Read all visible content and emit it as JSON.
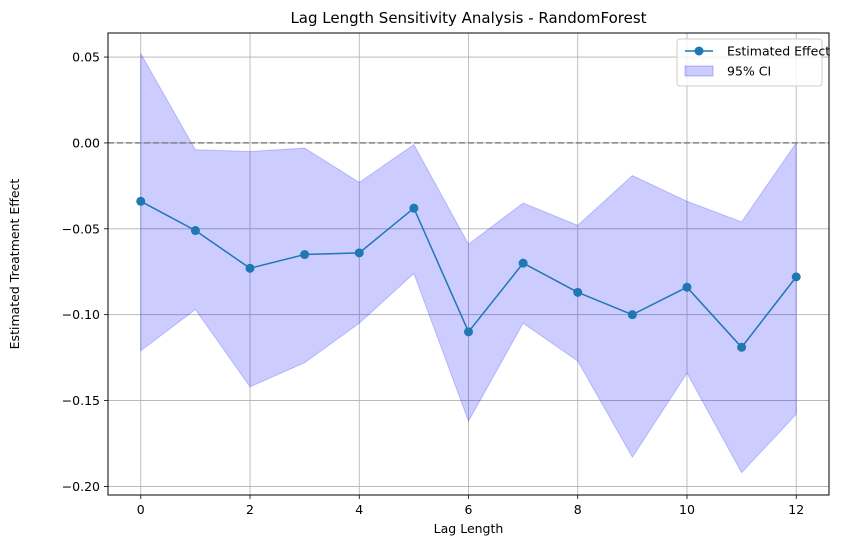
{
  "chart_data": {
    "type": "line",
    "title": "Lag Length Sensitivity Analysis - RandomForest",
    "xlabel": "Lag Length",
    "ylabel": "Estimated Treatment Effect",
    "x": [
      0,
      1,
      2,
      3,
      4,
      5,
      6,
      7,
      8,
      9,
      10,
      11,
      12
    ],
    "series": [
      {
        "name": "Estimated Effect",
        "values": [
          -0.034,
          -0.051,
          -0.073,
          -0.065,
          -0.064,
          -0.038,
          -0.11,
          -0.07,
          -0.087,
          -0.1,
          -0.084,
          -0.119,
          -0.078
        ],
        "color": "#1f77b4"
      }
    ],
    "confidence_band": {
      "name": "95% CI",
      "lower": [
        -0.121,
        -0.097,
        -0.142,
        -0.128,
        -0.105,
        -0.076,
        -0.162,
        -0.105,
        -0.127,
        -0.183,
        -0.134,
        -0.192,
        -0.158
      ],
      "upper": [
        0.052,
        -0.004,
        -0.005,
        -0.003,
        -0.023,
        -0.001,
        -0.059,
        -0.035,
        -0.048,
        -0.019,
        -0.034,
        -0.046,
        0.0
      ],
      "color": "#0000ff",
      "opacity": 0.2
    },
    "reference_line": {
      "y": 0.0,
      "style": "dashed",
      "color": "#808080"
    },
    "xlim": [
      -0.6,
      12.6
    ],
    "ylim": [
      -0.205,
      0.064
    ],
    "xticks": [
      0,
      2,
      4,
      6,
      8,
      10,
      12
    ],
    "xtick_labels": [
      "0",
      "2",
      "4",
      "6",
      "8",
      "10",
      "12"
    ],
    "yticks": [
      0.05,
      0.0,
      -0.05,
      -0.1,
      -0.15,
      -0.2
    ],
    "ytick_labels": [
      "0.05",
      "0.00",
      "−0.05",
      "−0.10",
      "−0.15",
      "−0.20"
    ],
    "grid": true,
    "legend": {
      "position": "upper right",
      "entries": [
        "Estimated Effect",
        "95% CI"
      ]
    }
  }
}
